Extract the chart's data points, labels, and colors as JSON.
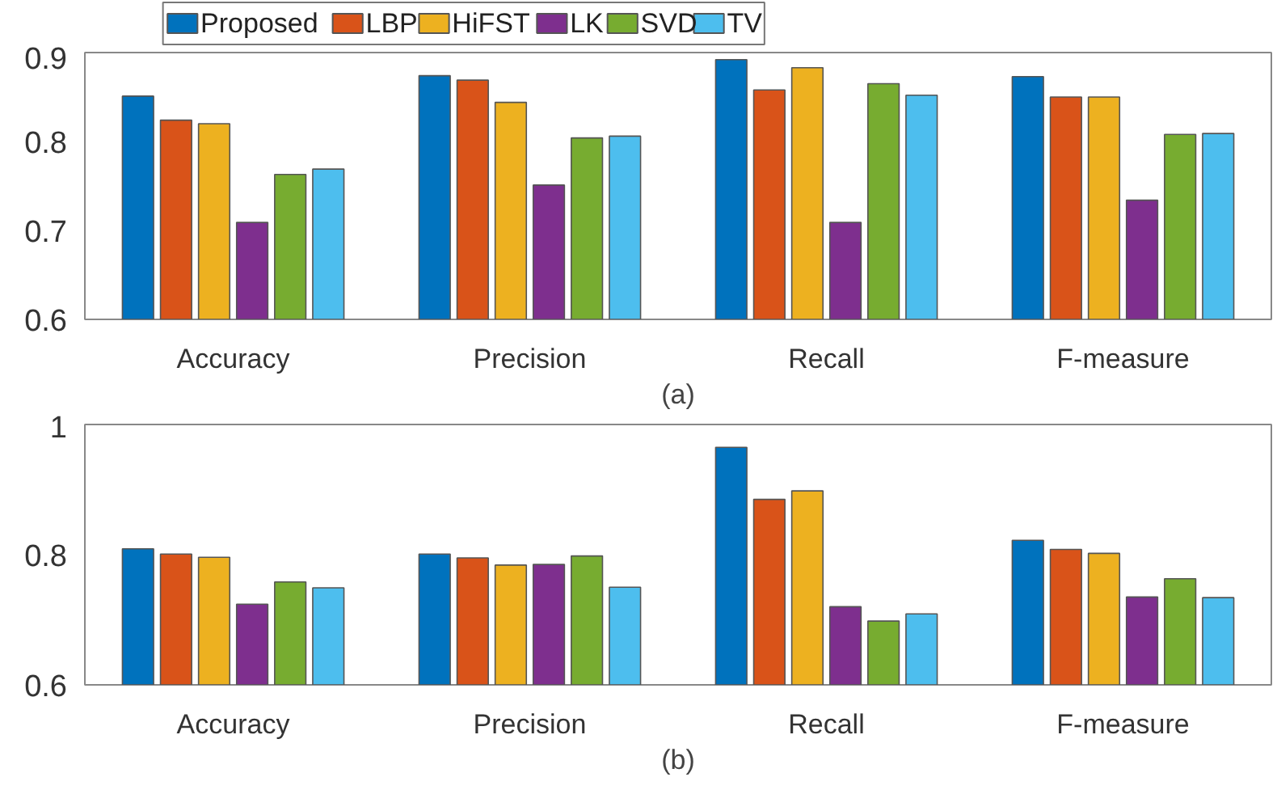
{
  "chart_data": [
    {
      "type": "bar",
      "categories": [
        "Accuracy",
        "Precision",
        "Recall",
        "F-measure"
      ],
      "xlabel": "(a)",
      "ylim": [
        0.6,
        0.9
      ],
      "yticks": [
        0.6,
        0.7,
        0.8,
        0.9
      ],
      "grid": false,
      "legend": "top left",
      "series": [
        {
          "name": "Proposed",
          "color": "#0072bd",
          "values": [
            0.851,
            0.874,
            0.892,
            0.873
          ]
        },
        {
          "name": "LBP",
          "color": "#d95319",
          "values": [
            0.824,
            0.869,
            0.858,
            0.85
          ]
        },
        {
          "name": "HiFST",
          "color": "#edb120",
          "values": [
            0.82,
            0.844,
            0.883,
            0.85
          ]
        },
        {
          "name": "LK",
          "color": "#7e2f8e",
          "values": [
            0.709,
            0.751,
            0.709,
            0.734
          ]
        },
        {
          "name": "SVD",
          "color": "#77ac30",
          "values": [
            0.763,
            0.804,
            0.865,
            0.808
          ]
        },
        {
          "name": "TV",
          "color": "#4dbeee",
          "values": [
            0.769,
            0.806,
            0.852,
            0.809
          ]
        }
      ]
    },
    {
      "type": "bar",
      "categories": [
        "Accuracy",
        "Precision",
        "Recall",
        "F-measure"
      ],
      "xlabel": "(b)",
      "ylim": [
        0.6,
        1
      ],
      "yticks": [
        0.6,
        0.8,
        1
      ],
      "grid": false,
      "legend": false,
      "series": [
        {
          "color": "#0072bd",
          "values": [
            0.809,
            0.801,
            0.965,
            0.822
          ]
        },
        {
          "color": "#d95319",
          "values": [
            0.801,
            0.795,
            0.885,
            0.808
          ]
        },
        {
          "color": "#edb120",
          "values": [
            0.796,
            0.784,
            0.898,
            0.802
          ]
        },
        {
          "color": "#7e2f8e",
          "values": [
            0.724,
            0.785,
            0.72,
            0.735
          ]
        },
        {
          "color": "#77ac30",
          "values": [
            0.758,
            0.798,
            0.698,
            0.763
          ]
        },
        {
          "color": "#4dbeee",
          "values": [
            0.749,
            0.75,
            0.709,
            0.734
          ]
        }
      ]
    }
  ]
}
